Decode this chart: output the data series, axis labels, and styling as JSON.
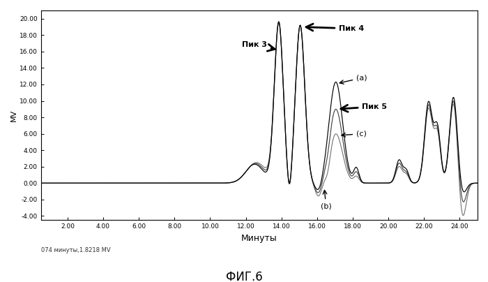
{
  "title": "ФИГ.6",
  "xlabel": "Минуты",
  "ylabel": "МV",
  "footer_text": "074 минуты,1.8218 МV",
  "xlim": [
    0.5,
    25.0
  ],
  "ylim": [
    -4.5,
    21.0
  ],
  "yticks": [
    -4.0,
    -2.0,
    0.0,
    2.0,
    4.0,
    6.0,
    8.0,
    10.0,
    12.0,
    14.0,
    16.0,
    18.0,
    20.0
  ],
  "xticks": [
    2.0,
    4.0,
    6.0,
    8.0,
    10.0,
    12.0,
    14.0,
    16.0,
    18.0,
    20.0,
    22.0,
    24.0
  ],
  "background_color": "#ffffff",
  "line_color": "#000000"
}
